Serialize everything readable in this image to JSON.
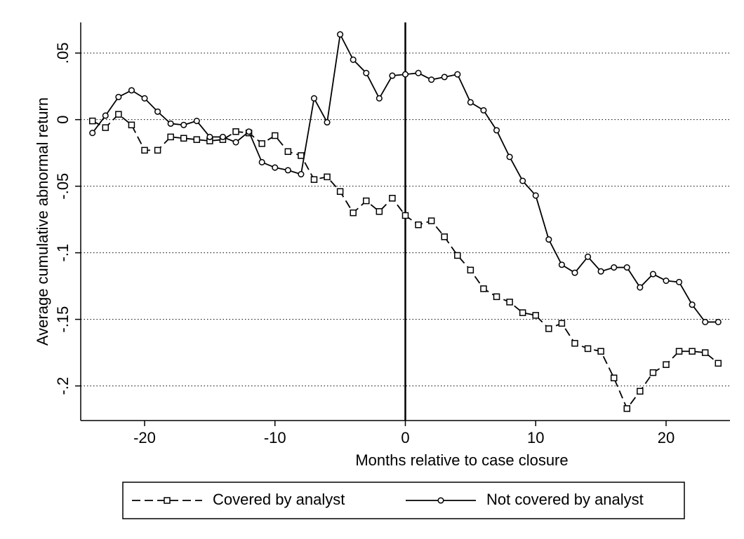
{
  "chart_data": {
    "type": "line",
    "x_label": "Months relative to case closure",
    "y_label": "Average cumulative abnormal return",
    "x": [
      -24,
      -23,
      -22,
      -21,
      -20,
      -19,
      -18,
      -17,
      -16,
      -15,
      -14,
      -13,
      -12,
      -11,
      -10,
      -9,
      -8,
      -7,
      -6,
      -5,
      -4,
      -3,
      -2,
      -1,
      0,
      1,
      2,
      3,
      4,
      5,
      6,
      7,
      8,
      9,
      10,
      11,
      12,
      13,
      14,
      15,
      16,
      17,
      18,
      19,
      20,
      21,
      22,
      23,
      24
    ],
    "series": [
      {
        "name": "Covered by analyst",
        "color": "#000000",
        "line_style": "dashed",
        "marker": "square",
        "values": [
          -0.001,
          -0.006,
          0.004,
          -0.004,
          -0.023,
          -0.023,
          -0.013,
          -0.014,
          -0.015,
          -0.016,
          -0.015,
          -0.009,
          -0.01,
          -0.018,
          -0.012,
          -0.024,
          -0.027,
          -0.045,
          -0.043,
          -0.054,
          -0.07,
          -0.061,
          -0.069,
          -0.059,
          -0.072,
          -0.079,
          -0.076,
          -0.088,
          -0.102,
          -0.113,
          -0.127,
          -0.133,
          -0.137,
          -0.145,
          -0.147,
          -0.157,
          -0.153,
          -0.168,
          -0.172,
          -0.174,
          -0.194,
          -0.217,
          -0.204,
          -0.19,
          -0.184,
          -0.174,
          -0.174,
          -0.175,
          -0.183
        ]
      },
      {
        "name": "Not covered by analyst",
        "color": "#000000",
        "line_style": "solid",
        "marker": "circle",
        "values": [
          -0.01,
          0.003,
          0.017,
          0.022,
          0.016,
          0.006,
          -0.003,
          -0.004,
          -0.001,
          -0.013,
          -0.013,
          -0.017,
          -0.009,
          -0.032,
          -0.036,
          -0.038,
          -0.041,
          0.016,
          -0.002,
          0.064,
          0.045,
          0.035,
          0.016,
          0.033,
          0.034,
          0.035,
          0.03,
          0.032,
          0.034,
          0.013,
          0.007,
          -0.008,
          -0.028,
          -0.046,
          -0.057,
          -0.09,
          -0.109,
          -0.115,
          -0.103,
          -0.114,
          -0.111,
          -0.111,
          -0.126,
          -0.116,
          -0.121,
          -0.122,
          -0.139,
          -0.152,
          -0.152
        ]
      }
    ],
    "xlim": [
      -24.9,
      24.9
    ],
    "ylim": [
      -0.226,
      0.073
    ],
    "xticks": [
      -20,
      -10,
      0,
      10,
      20
    ],
    "yticks": [
      {
        "value": 0.05,
        "label": ".05"
      },
      0,
      {
        "value": -0.05,
        "label": "-.05"
      },
      {
        "value": -0.1,
        "label": "-.1"
      },
      {
        "value": -0.15,
        "label": "-.15"
      },
      {
        "value": -0.2,
        "label": "-.2"
      }
    ],
    "vline": 0,
    "grid": true,
    "legend": "bottom"
  }
}
